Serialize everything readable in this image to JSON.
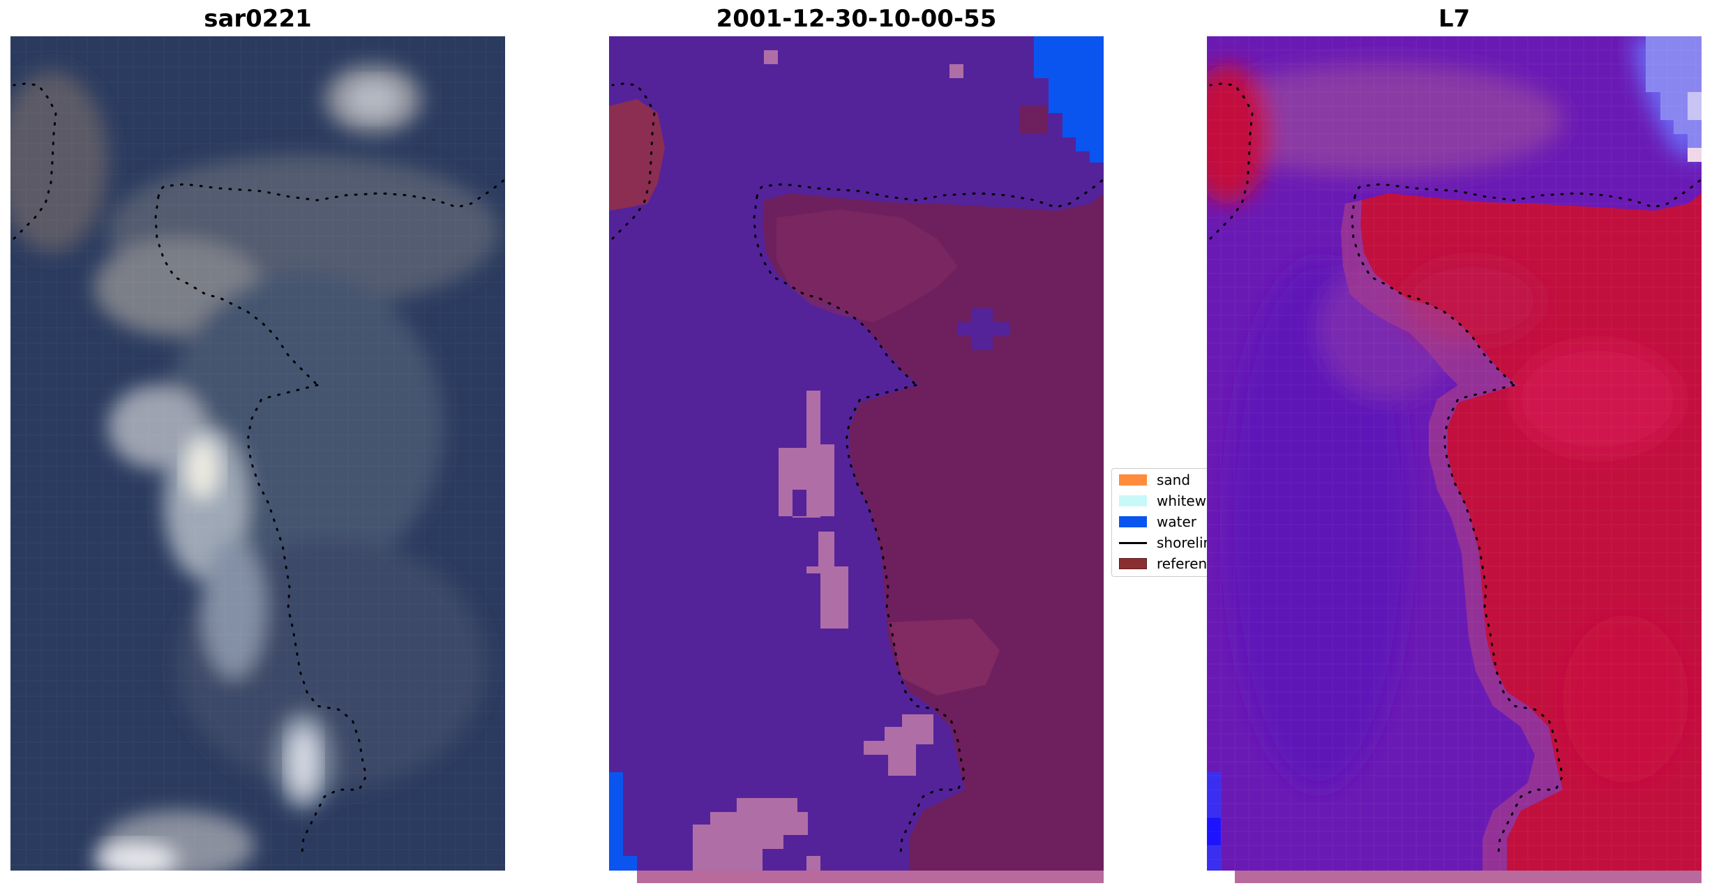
{
  "panels": [
    {
      "title": "sar0221"
    },
    {
      "title": "2001-12-30-10-00-55"
    },
    {
      "title": "L7"
    }
  ],
  "legend": {
    "items": [
      {
        "label": "sand",
        "color": "#ff8c3c",
        "kind": "patch"
      },
      {
        "label": "whitewater",
        "color": "#c8f8f8",
        "kind": "patch"
      },
      {
        "label": "water",
        "color": "#0a55f0",
        "kind": "patch"
      },
      {
        "label": "shoreline",
        "color": "#000000",
        "kind": "line"
      },
      {
        "label": "reference",
        "color": "#8b2e32",
        "kind": "patch"
      }
    ]
  },
  "colors": {
    "rgb_water": "#2a3a5e",
    "rgb_land": "#4a5a72",
    "rgb_bright": "#e8e8ee",
    "class_other": "#54239a",
    "class_land": "#6e1f5e",
    "class_bright": "#b06ea6",
    "class_water": "#0a55f0",
    "index_low": "#6a1ab4",
    "index_high": "#c2103e",
    "index_water": "#6a6af5"
  }
}
